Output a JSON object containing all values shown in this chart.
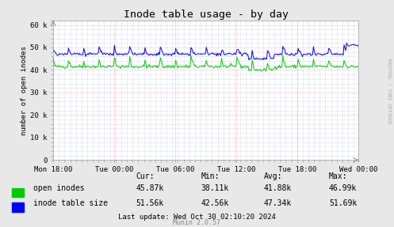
{
  "title": "Inode table usage - by day",
  "ylabel": "number of open inodes",
  "background_color": "#e8e8e8",
  "plot_bg_color": "#ffffff",
  "x_ticks_labels": [
    "Mon 18:00",
    "Tue 00:00",
    "Tue 06:00",
    "Tue 12:00",
    "Tue 18:00",
    "Wed 00:00"
  ],
  "y_ticks": [
    0,
    10000,
    20000,
    30000,
    40000,
    50000,
    60000
  ],
  "y_tick_labels": [
    "0",
    "10 k",
    "20 k",
    "30 k",
    "40 k",
    "50 k",
    "60 k"
  ],
  "ylim": [
    0,
    62000
  ],
  "legend": [
    {
      "label": "open inodes",
      "color": "#00cc00"
    },
    {
      "label": "inode table size",
      "color": "#0000ff"
    }
  ],
  "stats_headers": [
    "Cur:",
    "Min:",
    "Avg:",
    "Max:"
  ],
  "stats": [
    {
      "name": "open inodes",
      "cur": "45.87k",
      "min": "38.11k",
      "avg": "41.88k",
      "max": "46.99k"
    },
    {
      "name": "inode table size",
      "cur": "51.56k",
      "min": "42.56k",
      "avg": "47.34k",
      "max": "51.69k"
    }
  ],
  "last_update": "Last update: Wed Oct 30 02:10:20 2024",
  "munin_version": "Munin 2.0.57",
  "rrdtool_label": "RRDTOOL / TOBI OETIKER",
  "open_color": "#00cc00",
  "inode_color": "#0000ff"
}
